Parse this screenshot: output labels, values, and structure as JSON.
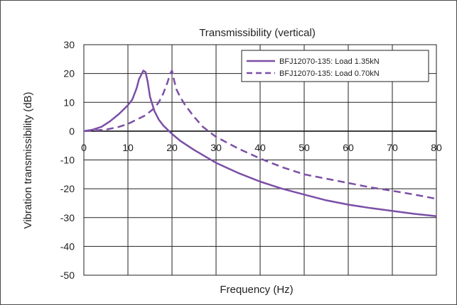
{
  "chart_data": {
    "type": "line",
    "title": "Transmissibility (vertical)",
    "xlabel": "Frequency (Hz)",
    "ylabel": "Vibration transmissibility (dB)",
    "xlim": [
      0,
      80
    ],
    "ylim": [
      -50,
      30
    ],
    "xticks": [
      0,
      10,
      20,
      30,
      40,
      50,
      60,
      70,
      80
    ],
    "yticks": [
      30,
      20,
      10,
      0,
      -10,
      -20,
      -30,
      -40,
      -50
    ],
    "grid": true,
    "legend_position": "top-right",
    "color": "#7b4fa6",
    "series": [
      {
        "name": "BFJ12070-135: Load 1.35kN",
        "style": "solid",
        "x": [
          0,
          2,
          4,
          6,
          8,
          10,
          11,
          12,
          12.5,
          13,
          13.5,
          14,
          14.5,
          15,
          16,
          17,
          18,
          20,
          22,
          25,
          30,
          35,
          40,
          45,
          50,
          55,
          60,
          65,
          70,
          75,
          80
        ],
        "y": [
          0,
          0.5,
          1.5,
          3.5,
          6,
          9,
          11,
          15,
          18,
          19.5,
          21,
          20.5,
          17,
          12,
          7,
          4,
          2,
          -1,
          -3.5,
          -6.5,
          -11,
          -14.5,
          -17.5,
          -20,
          -22,
          -24,
          -25.5,
          -26.7,
          -27.7,
          -28.7,
          -29.5
        ]
      },
      {
        "name": "BFJ12070-135: Load 0.70kN",
        "style": "dashed",
        "x": [
          0,
          5,
          8,
          10,
          12,
          14,
          16,
          17,
          18,
          19,
          19.6,
          20,
          20.5,
          21,
          22,
          23,
          25,
          27,
          30,
          35,
          40,
          45,
          50,
          55,
          60,
          65,
          70,
          75,
          80
        ],
        "y": [
          0,
          0.5,
          1.5,
          2.5,
          4,
          5.5,
          8,
          10,
          13,
          17,
          20,
          21,
          17.5,
          14.5,
          11.5,
          9,
          5,
          1.5,
          -2,
          -6,
          -9.5,
          -12.5,
          -15,
          -16.5,
          -18,
          -19.5,
          -20.7,
          -22,
          -23.5
        ]
      }
    ]
  }
}
